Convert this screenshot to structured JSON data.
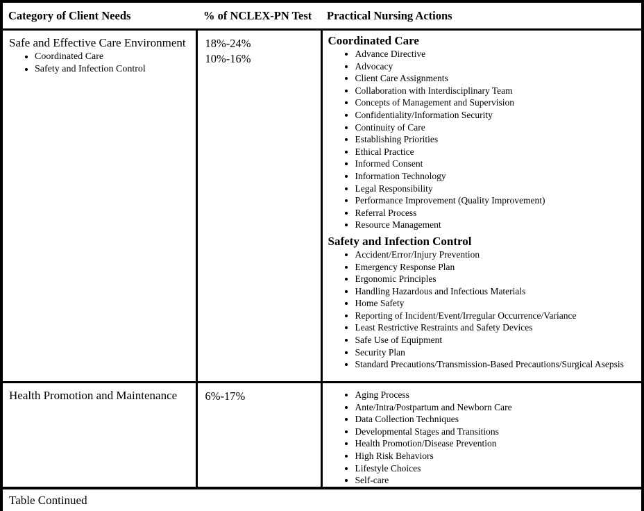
{
  "table": {
    "header": {
      "category": "Category of Client Needs",
      "percentage": "% of NCLEX-PN Test",
      "actions": "Practical Nursing Actions"
    },
    "rows": [
      {
        "category": "Safe and Effective Care Environment",
        "category_bullets": [
          "Coordinated Care",
          "Safety and Infection Control"
        ],
        "percentages": [
          "18%-24%",
          "10%-16%"
        ],
        "sections": [
          {
            "heading": "Coordinated Care",
            "items": [
              "Advance Directive",
              "Advocacy",
              "Client Care Assignments",
              "Collaboration with Interdisciplinary Team",
              "Concepts of Management and Supervision",
              "Confidentiality/Information Security",
              "Continuity of Care",
              "Establishing Priorities",
              "Ethical Practice",
              "Informed Consent",
              "Information Technology",
              "Legal Responsibility",
              "Performance Improvement (Quality Improvement)",
              "Referral Process",
              "Resource Management"
            ]
          },
          {
            "heading": "Safety and Infection Control",
            "items": [
              "Accident/Error/Injury Prevention",
              "Emergency Response Plan",
              "Ergonomic Principles",
              "Handling Hazardous and Infectious Materials",
              "Home Safety",
              "Reporting of Incident/Event/Irregular Occurrence/Variance",
              "Least Restrictive Restraints and Safety Devices",
              "Safe Use of Equipment",
              "Security Plan",
              "Standard Precautions/Transmission-Based Precautions/Surgical Asepsis"
            ]
          }
        ]
      },
      {
        "category": "Health Promotion and Maintenance",
        "category_bullets": [],
        "percentages": [
          "6%-17%"
        ],
        "sections": [
          {
            "heading": "",
            "items": [
              "Aging Process",
              "Ante/Intra/Postpartum and Newborn Care",
              "Data Collection Techniques",
              "Developmental Stages and Transitions",
              "Health Promotion/Disease Prevention",
              "High Risk Behaviors",
              "Lifestyle Choices",
              "Self-care"
            ]
          }
        ]
      }
    ],
    "footer": "Table Continued"
  },
  "colors": {
    "border": "#000000",
    "background": "#ffffff",
    "text": "#000000"
  }
}
